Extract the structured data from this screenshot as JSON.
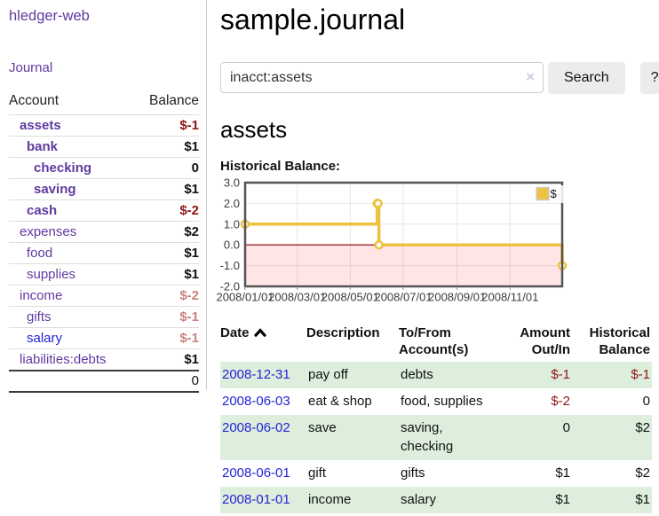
{
  "app": {
    "brand": "hledger-web"
  },
  "palette": {
    "link_purple": "#5f3a9f",
    "link_blue": "#2323d6",
    "negative_strong": "#8f1414",
    "negative_soft": "#c9827f",
    "row_stripe_green": "#ddeedd",
    "button_gray": "#ececec"
  },
  "sidebar": {
    "nav": [
      {
        "label": "Journal"
      }
    ],
    "accounts_table": {
      "headers": {
        "account": "Account",
        "balance": "Balance"
      },
      "rows": [
        {
          "name": "assets",
          "depth": 1,
          "bold": true,
          "balance": "$-1",
          "balance_style": "neg_strong"
        },
        {
          "name": "bank",
          "depth": 2,
          "bold": true,
          "balance": "$1",
          "balance_style": "pos"
        },
        {
          "name": "checking",
          "depth": 3,
          "bold": true,
          "balance": "0",
          "balance_style": "pos"
        },
        {
          "name": "saving",
          "depth": 3,
          "bold": true,
          "balance": "$1",
          "balance_style": "pos"
        },
        {
          "name": "cash",
          "depth": 2,
          "bold": true,
          "balance": "$-2",
          "balance_style": "neg_strong"
        },
        {
          "name": "expenses",
          "depth": 1,
          "bold": false,
          "balance": "$2",
          "balance_style": "pos"
        },
        {
          "name": "food",
          "depth": 2,
          "bold": false,
          "balance": "$1",
          "balance_style": "pos"
        },
        {
          "name": "supplies",
          "depth": 2,
          "bold": false,
          "balance": "$1",
          "balance_style": "pos"
        },
        {
          "name": "income",
          "depth": 1,
          "bold": false,
          "balance": "$-2",
          "balance_style": "neg_soft"
        },
        {
          "name": "gifts",
          "depth": 2,
          "bold": false,
          "balance": "$-1",
          "balance_style": "neg_soft"
        },
        {
          "name": "salary",
          "depth": 2,
          "bold": false,
          "balance": "$-1",
          "balance_style": "neg_soft",
          "link_style": "blue"
        },
        {
          "name": "liabilities:debts",
          "depth": 1,
          "bold": false,
          "balance": "$1",
          "balance_style": "pos"
        }
      ],
      "total": "0"
    }
  },
  "header": {
    "title": "sample.journal"
  },
  "search": {
    "value": "inacct:assets",
    "clear_icon": "×",
    "button_label": "Search",
    "help_label": "?"
  },
  "account_page": {
    "heading": "assets",
    "chart_label": "Historical Balance:"
  },
  "chart_data": {
    "type": "line",
    "step": true,
    "series": [
      {
        "name": "$",
        "color": "#edc240",
        "points": [
          [
            "2008-01-01",
            1
          ],
          [
            "2008-06-01",
            2
          ],
          [
            "2008-06-02",
            2
          ],
          [
            "2008-06-03",
            0
          ],
          [
            "2008-12-31",
            -1
          ]
        ]
      }
    ],
    "xlim": [
      "2008-01-01",
      "2008-12-31"
    ],
    "ylim": [
      -2,
      3
    ],
    "y_ticks": [
      "3.0",
      "2.0",
      "1.0",
      "0.0",
      "-1.0",
      "-2.0"
    ],
    "y_tick_values": [
      3,
      2,
      1,
      0,
      -1,
      -2
    ],
    "x_ticks": [
      "2008/01/01",
      "2008/03/01",
      "2008/05/01",
      "2008/07/01",
      "2008/09/01",
      "2008/11/01"
    ],
    "grid": true,
    "border_color": "#545454",
    "grid_color": "#e6e6e6",
    "negative_region_color": "rgba(255,0,0,0.10)",
    "zero_line_color": "#8b0000",
    "legend": {
      "label": "$",
      "position": "top-right"
    }
  },
  "register_table": {
    "headers": [
      {
        "lines": [
          "Date"
        ],
        "sort_asc": true
      },
      {
        "lines": [
          "Description"
        ]
      },
      {
        "lines": [
          "To/From",
          "Account(s)"
        ]
      },
      {
        "lines": [
          "Amount",
          "Out/In"
        ],
        "align": "right"
      },
      {
        "lines": [
          "Historical",
          "Balance"
        ],
        "align": "right"
      }
    ],
    "rows": [
      {
        "date": "2008-12-31",
        "description": "pay off",
        "accounts": "debts",
        "amount": "$-1",
        "balance": "$-1"
      },
      {
        "date": "2008-06-03",
        "description": "eat & shop",
        "accounts": "food, supplies",
        "amount": "$-2",
        "balance": "0"
      },
      {
        "date": "2008-06-02",
        "description": "save",
        "accounts": "saving, checking",
        "amount": "0",
        "balance": "$2"
      },
      {
        "date": "2008-06-01",
        "description": "gift",
        "accounts": "gifts",
        "amount": "$1",
        "balance": "$2"
      },
      {
        "date": "2008-01-01",
        "description": "income",
        "accounts": "salary",
        "amount": "$1",
        "balance": "$1"
      }
    ]
  }
}
